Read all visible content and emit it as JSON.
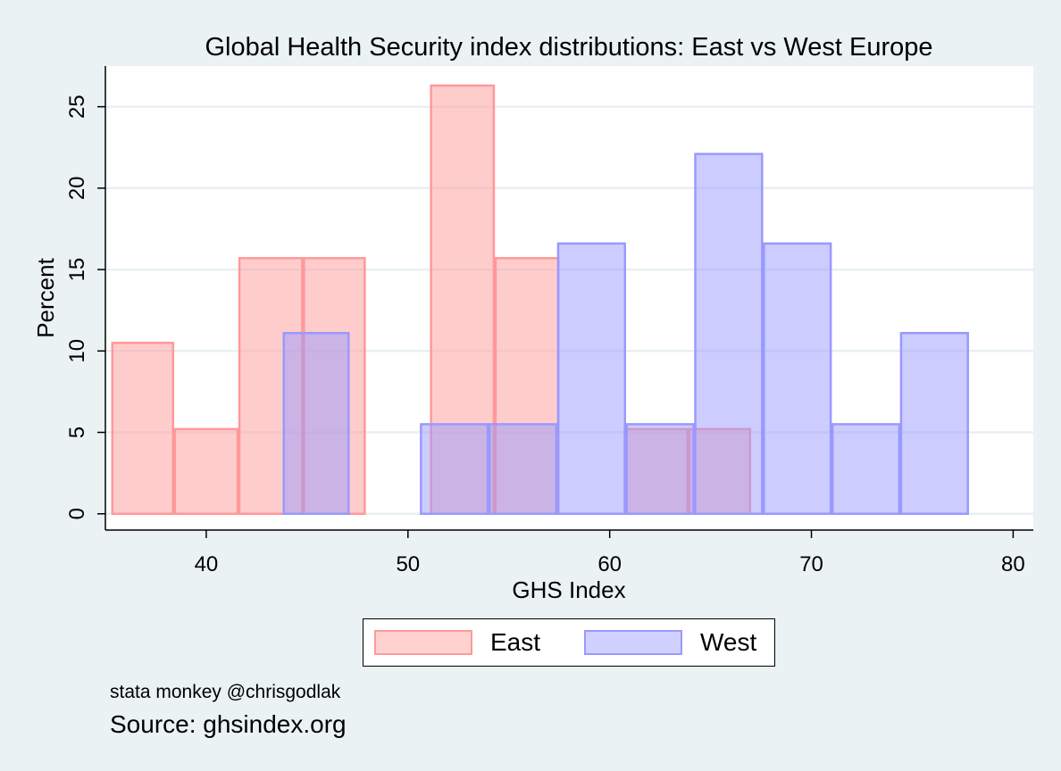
{
  "chart_data": {
    "type": "bar",
    "title": "Global Health Security index distributions: East vs West Europe",
    "xlabel": "GHS Index",
    "ylabel": "Percent",
    "xlim": [
      35,
      81
    ],
    "ylim": [
      -1.0,
      27.5
    ],
    "xticks": [
      40,
      50,
      60,
      70,
      80
    ],
    "yticks": [
      0,
      5,
      10,
      15,
      20,
      25
    ],
    "grid": true,
    "legend_position": "bottom",
    "series": [
      {
        "name": "East",
        "color": "#ff9999",
        "bins": [
          {
            "x0": 35.3,
            "x1": 38.4,
            "value": 10.5
          },
          {
            "x0": 38.4,
            "x1": 41.6,
            "value": 5.2
          },
          {
            "x0": 41.6,
            "x1": 44.8,
            "value": 15.7
          },
          {
            "x0": 44.8,
            "x1": 47.9,
            "value": 15.7
          },
          {
            "x0": 51.1,
            "x1": 54.3,
            "value": 26.3
          },
          {
            "x0": 54.3,
            "x1": 57.5,
            "value": 15.7
          },
          {
            "x0": 60.7,
            "x1": 63.9,
            "value": 5.2
          },
          {
            "x0": 63.9,
            "x1": 67.0,
            "value": 5.2
          }
        ]
      },
      {
        "name": "West",
        "color": "#9999ff",
        "bins": [
          {
            "x0": 43.8,
            "x1": 47.1,
            "value": 11.1
          },
          {
            "x0": 50.6,
            "x1": 54.0,
            "value": 5.5
          },
          {
            "x0": 54.0,
            "x1": 57.4,
            "value": 5.5
          },
          {
            "x0": 57.4,
            "x1": 60.8,
            "value": 16.6
          },
          {
            "x0": 60.8,
            "x1": 64.2,
            "value": 5.5
          },
          {
            "x0": 64.2,
            "x1": 67.6,
            "value": 22.1
          },
          {
            "x0": 67.6,
            "x1": 71.0,
            "value": 16.6
          },
          {
            "x0": 71.0,
            "x1": 74.4,
            "value": 5.5
          },
          {
            "x0": 74.4,
            "x1": 77.8,
            "value": 11.1
          }
        ]
      }
    ]
  },
  "legend": {
    "east_label": "East",
    "west_label": "West"
  },
  "notes": {
    "credit": "stata monkey @chrisgodlak",
    "source": "Source: ghsindex.org"
  }
}
